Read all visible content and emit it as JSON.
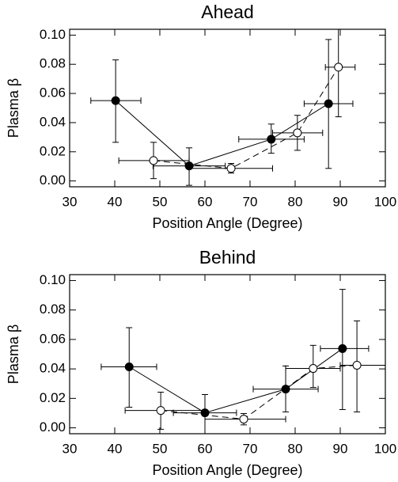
{
  "chart_data": [
    {
      "type": "scatter",
      "title": "Ahead",
      "xlabel": "Position Angle (Degree)",
      "ylabel": "Plasma β",
      "xlim": [
        30,
        100
      ],
      "xticks": [
        30,
        40,
        50,
        60,
        70,
        80,
        90,
        100
      ],
      "ylim": [
        -0.004,
        0.104
      ],
      "yticks": [
        {
          "value": 0,
          "label": "0.00"
        },
        {
          "value": 0.02,
          "label": "0.02"
        },
        {
          "value": 0.04,
          "label": "0.04"
        },
        {
          "value": 0.06,
          "label": "0.06"
        },
        {
          "value": 0.08,
          "label": "0.08"
        },
        {
          "value": 0.1,
          "label": "0.10"
        }
      ],
      "series": [
        {
          "marker": "filled",
          "line_style": "solid",
          "color": "#000000",
          "x": [
            40.2,
            56.5,
            74.7,
            87.4
          ],
          "values": [
            0.0551,
            0.0103,
            0.0286,
            0.053
          ],
          "y_low": [
            0.0265,
            -0.003,
            0.019,
            0.0086
          ],
          "y_high": [
            0.083,
            0.0227,
            0.039,
            0.097
          ],
          "x_low": [
            34.7,
            48.5,
            67.5,
            82
          ],
          "x_high": [
            45.8,
            64.5,
            82,
            92.8
          ]
        },
        {
          "marker": "open",
          "line_style": "dashed",
          "color": "#000000",
          "x": [
            48.6,
            65.8,
            80.5,
            89.6
          ],
          "values": [
            0.014,
            0.0086,
            0.033,
            0.078
          ],
          "y_low": [
            0.0016,
            0.0054,
            0.021,
            0.044
          ],
          "y_high": [
            0.0265,
            0.012,
            0.045,
            0.104
          ],
          "x_low": [
            40.9,
            56.5,
            75,
            86.7
          ],
          "x_high": [
            56.5,
            75,
            86.1,
            93.3
          ]
        }
      ]
    },
    {
      "type": "scatter",
      "title": "Behind",
      "xlabel": "Position Angle (Degree)",
      "ylabel": "Plasma β",
      "xlim": [
        30,
        100
      ],
      "xticks": [
        30,
        40,
        50,
        60,
        70,
        80,
        90,
        100
      ],
      "ylim": [
        -0.004,
        0.104
      ],
      "yticks": [
        {
          "value": 0,
          "label": "0.00"
        },
        {
          "value": 0.02,
          "label": "0.02"
        },
        {
          "value": 0.04,
          "label": "0.04"
        },
        {
          "value": 0.06,
          "label": "0.06"
        },
        {
          "value": 0.08,
          "label": "0.08"
        },
        {
          "value": 0.1,
          "label": "0.10"
        }
      ],
      "series": [
        {
          "marker": "filled",
          "line_style": "solid",
          "color": "#000000",
          "x": [
            43.2,
            60,
            77.9,
            90.5
          ],
          "values": [
            0.0414,
            0.0102,
            0.0263,
            0.0538
          ],
          "y_low": [
            0.014,
            -0.004,
            0.0108,
            0.0124
          ],
          "y_high": [
            0.068,
            0.0226,
            0.042,
            0.094
          ],
          "x_low": [
            37,
            53,
            70.7,
            85.6
          ],
          "x_high": [
            49.3,
            67,
            85.1,
            96.3
          ]
        },
        {
          "marker": "open",
          "line_style": "dashed",
          "color": "#000000",
          "x": [
            50.2,
            68.6,
            84,
            93.7
          ],
          "values": [
            0.0118,
            0.0059,
            0.0403,
            0.0425
          ],
          "y_low": [
            -0.001,
            0.002,
            0.0274,
            0.0108
          ],
          "y_high": [
            0.0242,
            0.0097,
            0.056,
            0.0726
          ],
          "x_low": [
            42.3,
            60,
            77.9,
            90
          ],
          "x_high": [
            60,
            77.9,
            90,
            100
          ]
        }
      ]
    }
  ]
}
